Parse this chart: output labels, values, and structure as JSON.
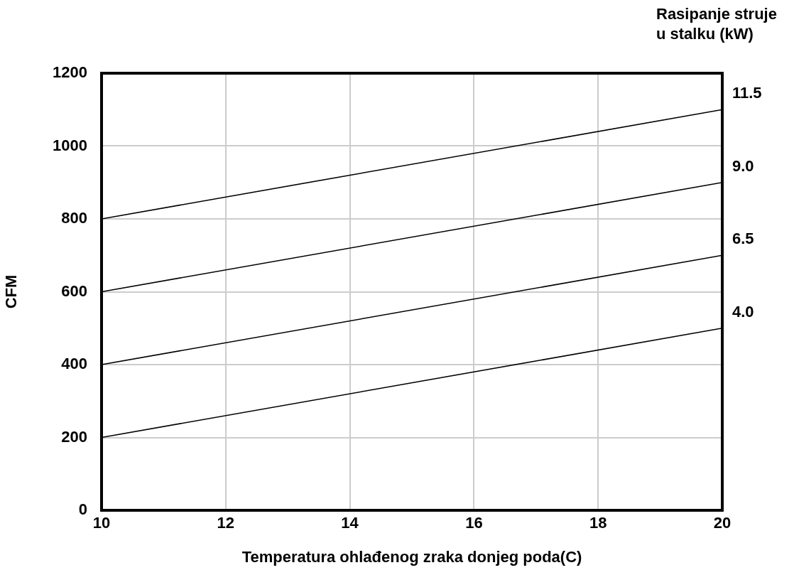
{
  "chart_data": {
    "type": "line",
    "xlabel": "Temperatura ohlađenog zraka donjeg poda(C)",
    "ylabel": "CFM",
    "legend_title": "Rasipanje struje u stalku (kW)",
    "x": [
      10,
      20
    ],
    "xlim": [
      10,
      20
    ],
    "xticks": [
      10,
      12,
      14,
      16,
      18,
      20
    ],
    "ylim": [
      0,
      1200
    ],
    "yticks": [
      0,
      200,
      400,
      600,
      800,
      1000,
      1200
    ],
    "grid": true,
    "legend": false,
    "marker": "none",
    "line_style": "solid",
    "series": [
      {
        "name": "11.5",
        "color": "#000000",
        "values": [
          800,
          1100
        ]
      },
      {
        "name": "9.0",
        "color": "#000000",
        "values": [
          600,
          900
        ]
      },
      {
        "name": "6.5",
        "color": "#000000",
        "values": [
          400,
          700
        ]
      },
      {
        "name": "4.0",
        "color": "#000000",
        "values": [
          200,
          500
        ]
      }
    ]
  }
}
